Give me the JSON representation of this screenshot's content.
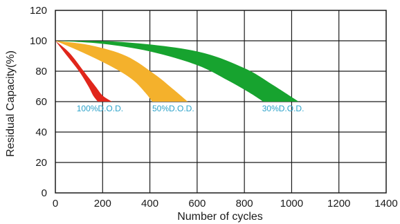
{
  "chart_data": {
    "type": "area",
    "title": "",
    "xlabel": "Number of cycles",
    "ylabel": "Residual Capacity(%)",
    "xlim": [
      0,
      1400
    ],
    "ylim": [
      0,
      120
    ],
    "x_ticks": [
      "0",
      "200",
      "400",
      "600",
      "800",
      "1000",
      "1200",
      "1400"
    ],
    "y_ticks": [
      "0",
      "20",
      "40",
      "60",
      "80",
      "100",
      "120"
    ],
    "grid": true,
    "series": [
      {
        "name": "100%D.O.D.",
        "color": "#e0261b",
        "upper": [
          [
            0,
            100
          ],
          [
            60,
            92
          ],
          [
            120,
            80
          ],
          [
            170,
            70
          ],
          [
            200,
            64
          ],
          [
            240,
            60
          ]
        ],
        "lower": [
          [
            0,
            100
          ],
          [
            50,
            90
          ],
          [
            100,
            80
          ],
          [
            140,
            70
          ],
          [
            160,
            64
          ],
          [
            180,
            60
          ]
        ]
      },
      {
        "name": "50%D.O.D.",
        "color": "#f4b12c",
        "upper": [
          [
            0,
            100
          ],
          [
            150,
            97
          ],
          [
            300,
            90
          ],
          [
            420,
            78
          ],
          [
            500,
            68
          ],
          [
            560,
            60
          ]
        ],
        "lower": [
          [
            0,
            100
          ],
          [
            120,
            92
          ],
          [
            250,
            82
          ],
          [
            330,
            74
          ],
          [
            380,
            66
          ],
          [
            410,
            60
          ]
        ]
      },
      {
        "name": "30%D.O.D.",
        "color": "#17a32f",
        "upper": [
          [
            0,
            100
          ],
          [
            300,
            99
          ],
          [
            600,
            93
          ],
          [
            800,
            82
          ],
          [
            920,
            71
          ],
          [
            1030,
            60
          ]
        ],
        "lower": [
          [
            0,
            100
          ],
          [
            200,
            98
          ],
          [
            400,
            93
          ],
          [
            600,
            84
          ],
          [
            730,
            74
          ],
          [
            820,
            66
          ],
          [
            880,
            60
          ]
        ]
      }
    ]
  }
}
